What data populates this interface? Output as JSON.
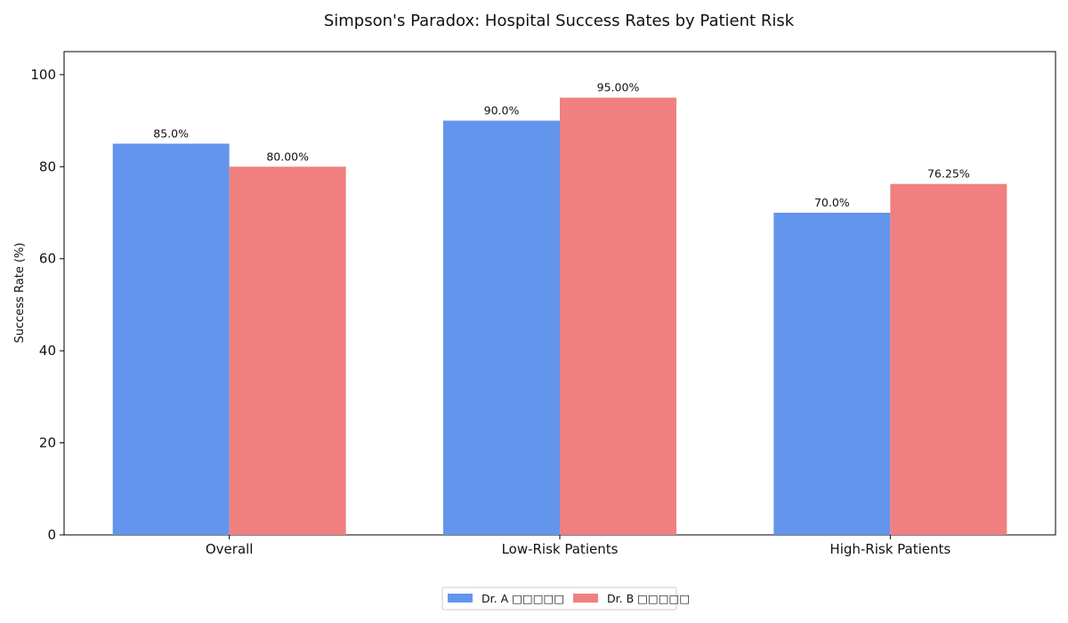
{
  "chart_data": {
    "type": "bar",
    "title": "Simpson's Paradox: Hospital Success Rates by Patient Risk",
    "xlabel": "",
    "ylabel": "Success Rate (%)",
    "ylim": [
      0,
      105
    ],
    "yticks": [
      0,
      20,
      40,
      60,
      80,
      100
    ],
    "categories": [
      "Overall",
      "Low-Risk Patients",
      "High-Risk Patients"
    ],
    "series": [
      {
        "name": "Dr. A □□□□□",
        "values": [
          85.0,
          90.0,
          70.0
        ],
        "labels": [
          "85.0%",
          "90.0%",
          "70.0%"
        ],
        "color": "#6495ED"
      },
      {
        "name": "Dr. B □□□□□",
        "values": [
          80.0,
          95.0,
          76.25
        ],
        "labels": [
          "80.00%",
          "95.00%",
          "76.25%"
        ],
        "color": "#F08080"
      }
    ],
    "grid": false,
    "legend": "bottom-center"
  }
}
